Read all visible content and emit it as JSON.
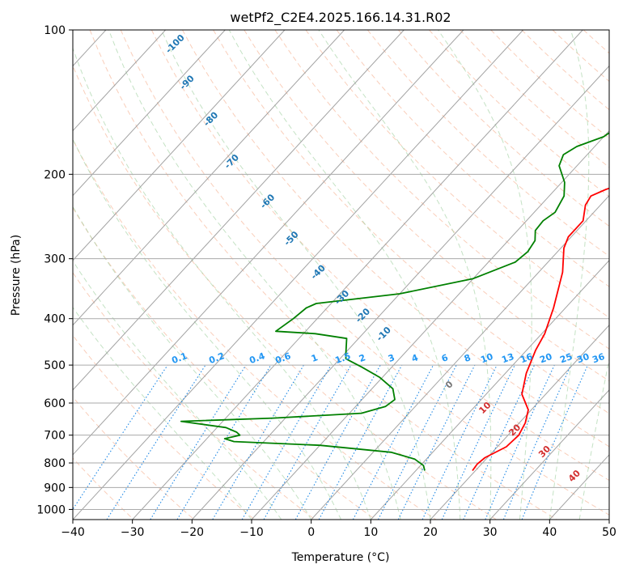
{
  "chart_data": {
    "type": "line",
    "title": "wetPf2_C2E4.2025.166.14.31.R02",
    "xlabel": "Temperature (°C)",
    "ylabel": "Pressure (hPa)",
    "xlim": [
      -40,
      50
    ],
    "ylim": [
      1050,
      100
    ],
    "y_scale": "log",
    "skew": "skew-T",
    "x_ticks": [
      -40,
      -30,
      -20,
      -10,
      0,
      10,
      20,
      30,
      40,
      50
    ],
    "y_ticks": [
      100,
      200,
      300,
      400,
      500,
      600,
      700,
      800,
      900,
      1000
    ],
    "grid": true,
    "series": [
      {
        "color": "#ff0000",
        "points": [
          [
            19.5,
            830
          ],
          [
            19.3,
            805
          ],
          [
            19.6,
            780
          ],
          [
            21.5,
            740
          ],
          [
            21.8,
            700
          ],
          [
            21.0,
            660
          ],
          [
            19.5,
            620
          ],
          [
            16.0,
            575
          ],
          [
            13.5,
            520
          ],
          [
            11.5,
            465
          ],
          [
            10.5,
            430
          ],
          [
            8.0,
            380
          ],
          [
            4.0,
            320
          ],
          [
            0.5,
            285
          ],
          [
            -0.5,
            270
          ],
          [
            -0.5,
            250
          ],
          [
            -2.5,
            232
          ],
          [
            -3.0,
            222
          ],
          [
            -1.5,
            215
          ],
          [
            3.0,
            203
          ],
          [
            8.0,
            190
          ],
          [
            11.5,
            176
          ],
          [
            13.0,
            160
          ],
          [
            14.0,
            145
          ],
          [
            15.0,
            132
          ],
          [
            16.0,
            123
          ],
          [
            16.5,
            115
          ],
          [
            16.7,
            108
          ],
          [
            16.5,
            100
          ]
        ]
      },
      {
        "color": "#008000",
        "points": [
          [
            11.5,
            830
          ],
          [
            10.5,
            810
          ],
          [
            8.0,
            785
          ],
          [
            3.0,
            760
          ],
          [
            -10.0,
            735
          ],
          [
            -25.0,
            722
          ],
          [
            -27.0,
            712
          ],
          [
            -25.0,
            700
          ],
          [
            -26.0,
            690
          ],
          [
            -28.5,
            675
          ],
          [
            -37.0,
            655
          ],
          [
            -22.0,
            645
          ],
          [
            -8.0,
            630
          ],
          [
            -5.0,
            610
          ],
          [
            -4.5,
            590
          ],
          [
            -6.5,
            560
          ],
          [
            -10.5,
            530
          ],
          [
            -15.0,
            505
          ],
          [
            -19.0,
            485
          ],
          [
            -20.0,
            470
          ],
          [
            -22.0,
            440
          ],
          [
            -28.0,
            430
          ],
          [
            -35.0,
            425
          ],
          [
            -34.0,
            400
          ],
          [
            -33.5,
            380
          ],
          [
            -32.5,
            372
          ],
          [
            -20.0,
            355
          ],
          [
            -10.0,
            330
          ],
          [
            -5.5,
            305
          ],
          [
            -5.0,
            290
          ],
          [
            -5.5,
            275
          ],
          [
            -7.0,
            262
          ],
          [
            -7.2,
            250
          ],
          [
            -6.5,
            240
          ],
          [
            -7.5,
            222
          ],
          [
            -9.5,
            208
          ],
          [
            -13.0,
            192
          ],
          [
            -14.0,
            182
          ],
          [
            -13.0,
            175
          ],
          [
            -10.0,
            167
          ],
          [
            -9.0,
            158
          ],
          [
            -8.5,
            150
          ],
          [
            -7.5,
            142
          ],
          [
            -7.5,
            135
          ],
          [
            -6.5,
            128
          ],
          [
            -6.0,
            122
          ],
          [
            -4.5,
            115
          ],
          [
            -2.0,
            108
          ],
          [
            0.0,
            100
          ]
        ]
      }
    ],
    "dry_adiabat_labels": [
      "-100",
      "-90",
      "-80",
      "-70",
      "-60",
      "-50",
      "-40",
      "-30",
      "-20",
      "-10",
      "0",
      "10",
      "20",
      "30",
      "40"
    ],
    "mixing_ratio_labels": [
      "0.1",
      "0.2",
      "0.4",
      "0.6",
      "1",
      "1.5",
      "2",
      "3",
      "4",
      "6",
      "8",
      "10",
      "13",
      "16",
      "20",
      "25",
      "30",
      "36"
    ]
  }
}
